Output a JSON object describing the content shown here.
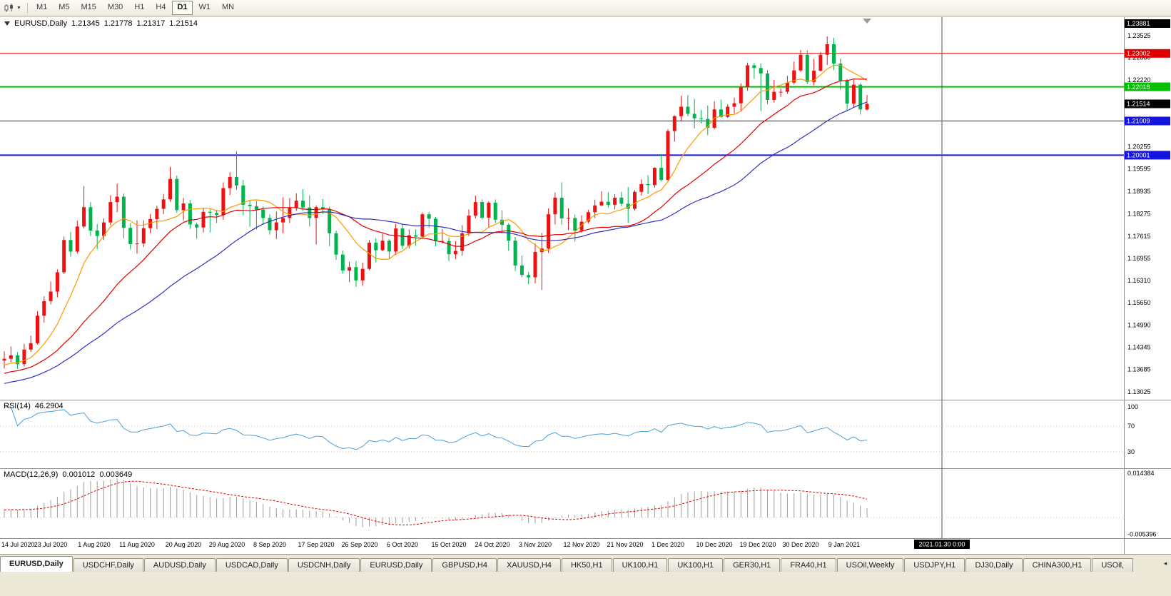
{
  "toolbar": {
    "timeframes": [
      "M1",
      "M5",
      "M15",
      "M30",
      "H1",
      "H4",
      "D1",
      "W1",
      "MN"
    ],
    "active_timeframe": "D1",
    "chart_type_icon": "candlestick-chart-icon",
    "dropdown_icon": "chevron-down-icon"
  },
  "main_chart": {
    "symbol": "EURUSD,Daily",
    "open": "1.21345",
    "high": "1.21778",
    "low": "1.21317",
    "close": "1.21514"
  },
  "rsi_panel": {
    "label": "RSI(14)",
    "value": "46.2904",
    "axis_labels": [
      "100",
      "70",
      "30"
    ]
  },
  "macd_panel": {
    "label": "MACD(12,26,9)",
    "value_main": "0.001012",
    "value_signal": "0.003649",
    "axis_top": "0.014384",
    "axis_bottom": "-0.005396"
  },
  "price_axis": {
    "labels": [
      "1.23525",
      "1.22880",
      "1.22220",
      "1.20255",
      "1.19595",
      "1.18935",
      "1.18275",
      "1.17615",
      "1.16955",
      "1.16310",
      "1.15650",
      "1.14990",
      "1.14345",
      "1.13685",
      "1.13025"
    ],
    "crosshair_badge": "1.23881",
    "current_price_badge": "1.21514"
  },
  "time_axis": {
    "labels": [
      {
        "text": "14 Jul 2020",
        "i": 0
      },
      {
        "text": "23 Jul 2020",
        "i": 7
      },
      {
        "text": "1 Aug 2020",
        "i": 13.6
      },
      {
        "text": "11 Aug 2020",
        "i": 20
      },
      {
        "text": "20 Aug 2020",
        "i": 27
      },
      {
        "text": "29 Aug 2020",
        "i": 33.6
      },
      {
        "text": "8 Sep 2020",
        "i": 40
      },
      {
        "text": "17 Sep 2020",
        "i": 47
      },
      {
        "text": "26 Sep 2020",
        "i": 53.6
      },
      {
        "text": "6 Oct 2020",
        "i": 60
      },
      {
        "text": "15 Oct 2020",
        "i": 67
      },
      {
        "text": "24 Oct 2020",
        "i": 73.6
      },
      {
        "text": "3 Nov 2020",
        "i": 80
      },
      {
        "text": "12 Nov 2020",
        "i": 87
      },
      {
        "text": "21 Nov 2020",
        "i": 93.6
      },
      {
        "text": "1 Dec 2020",
        "i": 100
      },
      {
        "text": "10 Dec 2020",
        "i": 107
      },
      {
        "text": "19 Dec 2020",
        "i": 113.6
      },
      {
        "text": "30 Dec 2020",
        "i": 120
      },
      {
        "text": "9 Jan 2021",
        "i": 126.6
      }
    ],
    "crosshair_badge": "2021.01.30 0:00",
    "crosshair_index": 141.3
  },
  "levels": [
    {
      "price": 1.23002,
      "label": "1.23002",
      "color": "#e00000",
      "width": 1
    },
    {
      "price": 1.22018,
      "label": "1.22018",
      "color": "#00c000",
      "width": 2
    },
    {
      "price": 1.21009,
      "label": "1.21009",
      "color": "#1414e0",
      "width": 1
    },
    {
      "price": 1.20001,
      "label": "1.20001",
      "color": "#1414e0",
      "width": 2
    }
  ],
  "colors": {
    "candle_up": "#ee1111",
    "candle_down": "#00b34d",
    "rsi_line": "#4a9fd8",
    "macd_hist": "#9c9c9c",
    "macd_signal": "#e00000",
    "badge_black": "#000000"
  },
  "tabs": {
    "active_index": 0,
    "items": [
      "EURUSD,Daily",
      "USDCHF,Daily",
      "AUDUSD,Daily",
      "USDCAD,Daily",
      "USDCNH,Daily",
      "EURUSD,Daily",
      "GBPUSD,H4",
      "XAUUSD,H4",
      "HK50,H1",
      "UK100,H1",
      "UK100,H1",
      "GER30,H1",
      "FRA40,H1",
      "USOil,Weekly",
      "USDJPY,H1",
      "DJ30,Daily",
      "CHINA300,H1",
      "USOil,"
    ],
    "scroll_icon": "◂"
  },
  "chart_data": {
    "type": "candlestick",
    "symbol": "EURUSD",
    "period": "Daily",
    "price_range": {
      "top_price": 1.23881,
      "bottom_price": 1.13025
    },
    "rsi": {
      "period": 14
    },
    "macd": {
      "fast": 12,
      "slow": 26,
      "signal": 9
    },
    "moving_averages": [
      {
        "period": 8,
        "color": "#ff9900"
      },
      {
        "period": 20,
        "color": "#e00000"
      },
      {
        "period": 35,
        "color": "#2f2fc4"
      }
    ],
    "candles": [
      [
        1.1395,
        1.1422,
        1.1371,
        1.14
      ],
      [
        1.14,
        1.1436,
        1.139,
        1.141
      ],
      [
        1.141,
        1.142,
        1.137,
        1.1384
      ],
      [
        1.1384,
        1.1444,
        1.1377,
        1.1427
      ],
      [
        1.1427,
        1.1468,
        1.142,
        1.1446
      ],
      [
        1.1446,
        1.154,
        1.1442,
        1.1527
      ],
      [
        1.1527,
        1.1584,
        1.1507,
        1.157
      ],
      [
        1.157,
        1.1628,
        1.156,
        1.1598
      ],
      [
        1.1598,
        1.1664,
        1.1581,
        1.1655
      ],
      [
        1.1655,
        1.176,
        1.165,
        1.175
      ],
      [
        1.175,
        1.1774,
        1.1701,
        1.1716
      ],
      [
        1.1716,
        1.1807,
        1.171,
        1.179
      ],
      [
        1.179,
        1.1909,
        1.1784,
        1.1847
      ],
      [
        1.1847,
        1.1862,
        1.1762,
        1.1778
      ],
      [
        1.1778,
        1.1797,
        1.1723,
        1.1762
      ],
      [
        1.1762,
        1.1814,
        1.175,
        1.1802
      ],
      [
        1.1802,
        1.1882,
        1.1794,
        1.1862
      ],
      [
        1.1862,
        1.1916,
        1.1832,
        1.1878
      ],
      [
        1.1878,
        1.1887,
        1.1755,
        1.1786
      ],
      [
        1.1786,
        1.18,
        1.1722,
        1.1738
      ],
      [
        1.1738,
        1.1808,
        1.171,
        1.174
      ],
      [
        1.174,
        1.1808,
        1.1729,
        1.1785
      ],
      [
        1.1785,
        1.1827,
        1.177,
        1.1812
      ],
      [
        1.1812,
        1.1851,
        1.1782,
        1.1842
      ],
      [
        1.1842,
        1.1886,
        1.1826,
        1.187
      ],
      [
        1.187,
        1.1966,
        1.1863,
        1.193
      ],
      [
        1.193,
        1.194,
        1.183,
        1.1838
      ],
      [
        1.1838,
        1.1874,
        1.1808,
        1.1858
      ],
      [
        1.1858,
        1.1868,
        1.1783,
        1.1796
      ],
      [
        1.1796,
        1.1802,
        1.1754,
        1.1787
      ],
      [
        1.1787,
        1.1843,
        1.1772,
        1.1833
      ],
      [
        1.1833,
        1.1844,
        1.1772,
        1.183
      ],
      [
        1.183,
        1.1839,
        1.18,
        1.1824
      ],
      [
        1.1824,
        1.192,
        1.181,
        1.1903
      ],
      [
        1.1903,
        1.195,
        1.1883,
        1.1936
      ],
      [
        1.1936,
        1.2011,
        1.1898,
        1.1911
      ],
      [
        1.1911,
        1.1927,
        1.1823,
        1.1854
      ],
      [
        1.1854,
        1.1868,
        1.1789,
        1.185
      ],
      [
        1.185,
        1.1865,
        1.1781,
        1.184
      ],
      [
        1.184,
        1.1849,
        1.1795,
        1.1815
      ],
      [
        1.1815,
        1.1826,
        1.1766,
        1.1779
      ],
      [
        1.1779,
        1.1834,
        1.1753,
        1.1802
      ],
      [
        1.1802,
        1.1876,
        1.177,
        1.1815
      ],
      [
        1.1815,
        1.1874,
        1.18,
        1.1845
      ],
      [
        1.1845,
        1.1888,
        1.1836,
        1.1866
      ],
      [
        1.1866,
        1.19,
        1.1836,
        1.1846
      ],
      [
        1.1846,
        1.1882,
        1.179,
        1.1815
      ],
      [
        1.1815,
        1.1852,
        1.1737,
        1.1847
      ],
      [
        1.1847,
        1.1871,
        1.1827,
        1.184
      ],
      [
        1.184,
        1.1848,
        1.1732,
        1.177
      ],
      [
        1.177,
        1.1778,
        1.1692,
        1.1707
      ],
      [
        1.1707,
        1.1719,
        1.1651,
        1.166
      ],
      [
        1.166,
        1.1686,
        1.1626,
        1.167
      ],
      [
        1.167,
        1.1688,
        1.1612,
        1.1631
      ],
      [
        1.1631,
        1.1683,
        1.1615,
        1.1665
      ],
      [
        1.1665,
        1.175,
        1.1661,
        1.1742
      ],
      [
        1.1742,
        1.1755,
        1.1684,
        1.172
      ],
      [
        1.172,
        1.1769,
        1.1717,
        1.1748
      ],
      [
        1.1748,
        1.1752,
        1.1695,
        1.1716
      ],
      [
        1.1716,
        1.1798,
        1.1706,
        1.1784
      ],
      [
        1.1784,
        1.1798,
        1.1724,
        1.1733
      ],
      [
        1.1733,
        1.1781,
        1.1725,
        1.1764
      ],
      [
        1.1764,
        1.1782,
        1.1733,
        1.176
      ],
      [
        1.176,
        1.1831,
        1.1754,
        1.1826
      ],
      [
        1.1826,
        1.1832,
        1.1787,
        1.1813
      ],
      [
        1.1813,
        1.1818,
        1.1732,
        1.1746
      ],
      [
        1.1746,
        1.1782,
        1.174,
        1.1747
      ],
      [
        1.1747,
        1.1758,
        1.1688,
        1.1708
      ],
      [
        1.1708,
        1.1747,
        1.1694,
        1.1718
      ],
      [
        1.1718,
        1.1794,
        1.1704,
        1.177
      ],
      [
        1.177,
        1.184,
        1.1762,
        1.1822
      ],
      [
        1.1822,
        1.1881,
        1.1814,
        1.1862
      ],
      [
        1.1862,
        1.187,
        1.1811,
        1.1816
      ],
      [
        1.1816,
        1.1864,
        1.1786,
        1.186
      ],
      [
        1.186,
        1.187,
        1.18,
        1.181
      ],
      [
        1.181,
        1.1837,
        1.1773,
        1.1795
      ],
      [
        1.1795,
        1.18,
        1.1718,
        1.1748
      ],
      [
        1.1748,
        1.1759,
        1.1659,
        1.1675
      ],
      [
        1.1675,
        1.1704,
        1.164,
        1.1647
      ],
      [
        1.1647,
        1.1656,
        1.162,
        1.164
      ],
      [
        1.164,
        1.174,
        1.1623,
        1.1715
      ],
      [
        1.1715,
        1.1771,
        1.1603,
        1.1725
      ],
      [
        1.1725,
        1.1843,
        1.1712,
        1.1826
      ],
      [
        1.1826,
        1.189,
        1.1796,
        1.1875
      ],
      [
        1.1875,
        1.192,
        1.1795,
        1.1814
      ],
      [
        1.1814,
        1.1843,
        1.1779,
        1.1815
      ],
      [
        1.1815,
        1.1825,
        1.1745,
        1.1778
      ],
      [
        1.1778,
        1.1823,
        1.1772,
        1.1804
      ],
      [
        1.1804,
        1.1839,
        1.1799,
        1.1832
      ],
      [
        1.1832,
        1.1869,
        1.1815,
        1.1852
      ],
      [
        1.1852,
        1.1894,
        1.185,
        1.1863
      ],
      [
        1.1863,
        1.1891,
        1.1846,
        1.1854
      ],
      [
        1.1854,
        1.1885,
        1.184,
        1.1875
      ],
      [
        1.1875,
        1.1892,
        1.1849,
        1.1857
      ],
      [
        1.1857,
        1.1906,
        1.18,
        1.1842
      ],
      [
        1.1842,
        1.1897,
        1.1837,
        1.1892
      ],
      [
        1.1892,
        1.1929,
        1.1881,
        1.1915
      ],
      [
        1.1915,
        1.1941,
        1.1885,
        1.1912
      ],
      [
        1.1912,
        1.1965,
        1.1904,
        1.1963
      ],
      [
        1.1963,
        1.2003,
        1.1923,
        1.1927
      ],
      [
        1.1927,
        1.2077,
        1.1924,
        1.2071
      ],
      [
        1.2071,
        1.2118,
        1.204,
        1.2115
      ],
      [
        1.2115,
        1.2175,
        1.21,
        1.2143
      ],
      [
        1.2143,
        1.2177,
        1.2115,
        1.2122
      ],
      [
        1.2122,
        1.2166,
        1.2079,
        1.2109
      ],
      [
        1.2109,
        1.2134,
        1.2094,
        1.2107
      ],
      [
        1.2107,
        1.2147,
        1.2059,
        1.2081
      ],
      [
        1.2081,
        1.2159,
        1.2076,
        1.2135
      ],
      [
        1.2135,
        1.2164,
        1.211,
        1.2113
      ],
      [
        1.2113,
        1.215,
        1.211,
        1.2143
      ],
      [
        1.2143,
        1.217,
        1.2123,
        1.2153
      ],
      [
        1.2153,
        1.2212,
        1.2131,
        1.22
      ],
      [
        1.22,
        1.2273,
        1.219,
        1.2265
      ],
      [
        1.2265,
        1.2272,
        1.2225,
        1.2257
      ],
      [
        1.2257,
        1.2271,
        1.213,
        1.2241
      ],
      [
        1.2241,
        1.2251,
        1.2151,
        1.2163
      ],
      [
        1.2163,
        1.2222,
        1.2155,
        1.2187
      ],
      [
        1.2187,
        1.2197,
        1.2172,
        1.2187
      ],
      [
        1.2187,
        1.2234,
        1.2181,
        1.2214
      ],
      [
        1.2214,
        1.2276,
        1.2209,
        1.225
      ],
      [
        1.225,
        1.231,
        1.2246,
        1.2296
      ],
      [
        1.2296,
        1.2309,
        1.221,
        1.2216
      ],
      [
        1.2216,
        1.2284,
        1.2206,
        1.2249
      ],
      [
        1.2249,
        1.2304,
        1.2247,
        1.2296
      ],
      [
        1.2296,
        1.235,
        1.2266,
        1.2327
      ],
      [
        1.2327,
        1.2346,
        1.2251,
        1.227
      ],
      [
        1.227,
        1.2285,
        1.2193,
        1.222
      ],
      [
        1.222,
        1.2225,
        1.2132,
        1.2152
      ],
      [
        1.2152,
        1.2223,
        1.214,
        1.2208
      ],
      [
        1.2208,
        1.2212,
        1.212,
        1.2135
      ],
      [
        1.21345,
        1.21778,
        1.21317,
        1.21514
      ]
    ]
  }
}
